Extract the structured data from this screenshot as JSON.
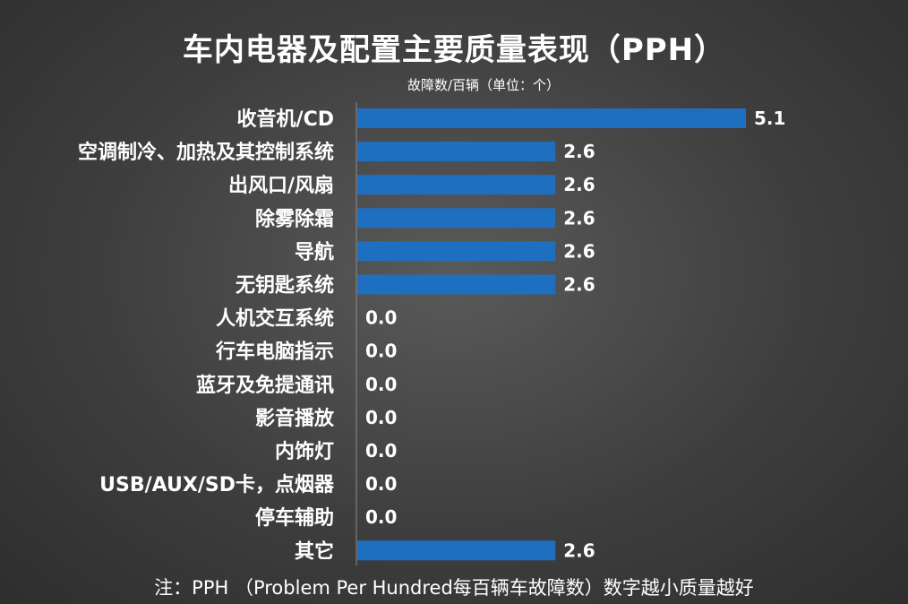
{
  "chart_data": {
    "type": "bar",
    "orientation": "horizontal",
    "title": "车内电器及配置主要质量表现（PPH）",
    "unit_note": "故障数/百辆（单位：个）",
    "categories": [
      "收音机/CD",
      "空调制冷、加热及其控制系统",
      "出风口/风扇",
      "除雾除霜",
      "导航",
      "无钥匙系统",
      "人机交互系统",
      "行车电脑指示",
      "蓝牙及免提通讯",
      "影音播放",
      "内饰灯",
      "USB/AUX/SD卡，点烟器",
      "停车辅助",
      "其它"
    ],
    "values": [
      5.1,
      2.6,
      2.6,
      2.6,
      2.6,
      2.6,
      0.0,
      0.0,
      0.0,
      0.0,
      0.0,
      0.0,
      0.0,
      2.6
    ],
    "value_labels": [
      "5.1",
      "2.6",
      "2.6",
      "2.6",
      "2.6",
      "2.6",
      "0.0",
      "0.0",
      "0.0",
      "0.0",
      "0.0",
      "0.0",
      "0.0",
      "2.6"
    ],
    "xlim": [
      0,
      5.1
    ],
    "grid": false,
    "bar_color": "#1f6fc0",
    "footnote": "注：PPH （Problem Per Hundred每百辆车故障数）数字越小质量越好"
  }
}
